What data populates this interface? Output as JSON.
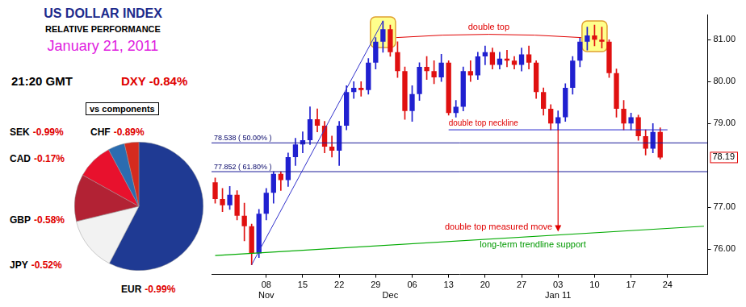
{
  "header": {
    "title": "US DOLLAR INDEX",
    "subtitle": "RELATIVE PERFORMANCE",
    "date": "January 21, 2011",
    "time": "21:20 GMT",
    "index": {
      "name": "DXY",
      "change": {
        "value": -0.84,
        "label": "-0.84%"
      }
    }
  },
  "chart_data": [
    {
      "type": "pie",
      "title": "vs components",
      "categories": [
        "EUR",
        "JPY",
        "GBP",
        "CAD",
        "SEK",
        "CHF"
      ],
      "values": [
        57.6,
        13.6,
        11.9,
        9.1,
        4.2,
        3.6
      ],
      "colors": [
        "#1f3a93",
        "#f2f2f2",
        "#b22234",
        "#e8112d",
        "#2b6cb0",
        "#d52b1e"
      ],
      "changes": [
        {
          "value": -0.99,
          "label": "-0.99%"
        },
        {
          "value": -0.52,
          "label": "-0.52%"
        },
        {
          "value": -0.58,
          "label": "-0.58%"
        },
        {
          "value": -0.17,
          "label": "-0.17%"
        },
        {
          "value": -0.99,
          "label": "-0.99%"
        },
        {
          "value": -0.89,
          "label": "-0.89%"
        }
      ]
    },
    {
      "type": "candlestick",
      "categories": [
        null,
        null,
        null,
        null,
        null,
        null,
        null,
        "08",
        null,
        null,
        null,
        null,
        "15",
        null,
        null,
        null,
        null,
        "22",
        null,
        null,
        null,
        null,
        "29",
        null,
        null,
        null,
        null,
        "06",
        null,
        null,
        null,
        null,
        "13",
        null,
        null,
        null,
        null,
        "20",
        null,
        null,
        null,
        null,
        "27",
        null,
        null,
        null,
        null,
        "03",
        null,
        null,
        null,
        null,
        "10",
        null,
        null,
        null,
        null,
        "17",
        null,
        null,
        null,
        null,
        "24",
        null,
        null,
        null,
        null,
        null
      ],
      "subcategories": [
        null,
        null,
        null,
        null,
        null,
        null,
        null,
        "Nov",
        null,
        null,
        null,
        null,
        null,
        null,
        null,
        null,
        null,
        null,
        null,
        null,
        null,
        null,
        null,
        null,
        "Dec",
        null,
        null,
        null,
        null,
        null,
        null,
        null,
        null,
        null,
        null,
        null,
        null,
        null,
        null,
        null,
        null,
        null,
        null,
        null,
        null,
        null,
        null,
        "Jan 11",
        null,
        null,
        null,
        null,
        null,
        null,
        null,
        null,
        null,
        null,
        null,
        null,
        null,
        null,
        null,
        null,
        null,
        null,
        null,
        null
      ],
      "open": [
        77.6,
        77.2,
        77.05,
        77.3,
        76.8,
        76.55,
        75.9,
        76.85,
        77.35,
        77.8,
        77.65,
        78.2,
        78.5,
        78.6,
        79.1,
        78.95,
        78.45,
        78.35,
        78.95,
        79.75,
        79.85,
        79.8,
        80.45,
        80.95,
        81.25,
        80.7,
        80.25,
        79.3,
        79.7,
        80.35,
        80.25,
        80.1,
        80.45,
        79.25,
        79.4,
        80.25,
        80.15,
        80.6,
        80.7,
        80.4,
        80.55,
        80.5,
        80.4,
        80.65,
        80.45,
        79.75,
        79.35,
        79.0,
        79.15,
        79.85,
        80.5,
        80.95,
        81.1,
        81.0,
        80.95,
        80.2,
        79.35,
        79.0,
        79.15,
        78.7,
        78.4,
        78.8,
        null,
        null,
        null,
        null,
        null,
        null
      ],
      "high": [
        77.7,
        77.45,
        77.5,
        77.4,
        77.1,
        76.6,
        76.95,
        77.45,
        77.85,
        77.85,
        78.3,
        78.65,
        78.8,
        79.4,
        79.35,
        79.05,
        78.7,
        79.05,
        79.9,
        80.0,
        80.0,
        80.55,
        81.05,
        81.445,
        81.35,
        80.95,
        80.35,
        79.9,
        80.45,
        80.6,
        80.5,
        80.65,
        80.5,
        79.55,
        80.35,
        80.5,
        80.7,
        80.85,
        80.8,
        80.7,
        80.75,
        80.6,
        80.8,
        80.85,
        80.5,
        79.85,
        79.45,
        79.3,
        79.95,
        80.6,
        81.05,
        81.3,
        81.35,
        81.3,
        81.0,
        80.3,
        79.55,
        79.25,
        79.2,
        78.85,
        79.0,
        78.9,
        null,
        null,
        null,
        null,
        null,
        null
      ],
      "low": [
        77.1,
        76.9,
        76.95,
        76.7,
        76.2,
        75.631,
        75.8,
        76.7,
        77.1,
        77.4,
        77.5,
        78.0,
        78.3,
        78.5,
        78.8,
        78.3,
        78.2,
        78.0,
        78.85,
        79.6,
        79.65,
        79.7,
        80.3,
        80.7,
        80.6,
        80.1,
        79.1,
        79.05,
        79.55,
        80.05,
        79.95,
        80.0,
        79.2,
        79.15,
        79.3,
        80.0,
        80.05,
        80.4,
        80.3,
        80.3,
        80.35,
        80.3,
        80.25,
        80.3,
        79.6,
        79.2,
        78.85,
        78.85,
        79.05,
        79.7,
        80.35,
        80.75,
        80.85,
        80.8,
        80.1,
        79.15,
        78.85,
        78.85,
        78.6,
        78.25,
        78.3,
        78.15,
        null,
        null,
        null,
        null,
        null,
        null
      ],
      "close": [
        77.2,
        77.05,
        77.3,
        76.8,
        76.55,
        75.9,
        76.85,
        77.35,
        77.8,
        77.65,
        78.2,
        78.5,
        78.6,
        79.1,
        78.95,
        78.45,
        78.35,
        78.95,
        79.75,
        79.85,
        79.8,
        80.45,
        80.95,
        81.25,
        80.7,
        80.25,
        79.3,
        79.7,
        80.35,
        80.25,
        80.1,
        80.45,
        79.25,
        79.4,
        80.25,
        80.15,
        80.6,
        80.7,
        80.4,
        80.55,
        80.5,
        80.4,
        80.65,
        80.45,
        79.75,
        79.35,
        79.0,
        79.15,
        79.85,
        80.5,
        80.95,
        81.1,
        81.0,
        80.95,
        80.2,
        79.35,
        79.0,
        79.15,
        78.7,
        78.4,
        78.8,
        78.19,
        null,
        null,
        null,
        null,
        null,
        null
      ],
      "colors": [
        "#e01010",
        "#e01010",
        "#2020d0",
        "#e01010",
        "#e01010",
        "#e01010",
        "#2020d0",
        "#2020d0",
        "#2020d0",
        "#e01010",
        "#2020d0",
        "#2020d0",
        "#2020d0",
        "#2020d0",
        "#e01010",
        "#e01010",
        "#e01010",
        "#2020d0",
        "#2020d0",
        "#2020d0",
        "#e01010",
        "#2020d0",
        "#2020d0",
        "#2020d0",
        "#e01010",
        "#e01010",
        "#e01010",
        "#2020d0",
        "#2020d0",
        "#e01010",
        "#e01010",
        "#2020d0",
        "#e01010",
        "#2020d0",
        "#2020d0",
        "#e01010",
        "#2020d0",
        "#2020d0",
        "#e01010",
        "#2020d0",
        "#e01010",
        "#e01010",
        "#2020d0",
        "#e01010",
        "#e01010",
        "#e01010",
        "#e01010",
        "#2020d0",
        "#2020d0",
        "#2020d0",
        "#2020d0",
        "#2020d0",
        "#e01010",
        "#e01010",
        "#e01010",
        "#e01010",
        "#e01010",
        "#2020d0",
        "#e01010",
        "#e01010",
        "#2020d0",
        "#e01010",
        null,
        null,
        null,
        null,
        null,
        null
      ],
      "ylim": [
        75.4,
        81.6
      ],
      "yticks": [
        {
          "value": 76,
          "label": "76.00"
        },
        {
          "value": 77,
          "label": "77.00"
        },
        {
          "value": 79,
          "label": "79.00"
        },
        {
          "value": 80,
          "label": "80.00"
        },
        {
          "value": 81,
          "label": "81.00"
        }
      ],
      "grid": false,
      "last_price": {
        "value": 78.19,
        "label": "78.19"
      },
      "fib_levels": [
        {
          "value": 78.538,
          "label": "78.538 ( 50.00% )"
        },
        {
          "value": 77.852,
          "label": "77.852 ( 61.80% )"
        }
      ],
      "fib_swing": {
        "from": [
          5,
          75.631
        ],
        "to": [
          23,
          81.445
        ]
      },
      "highlights": [
        {
          "from": 22,
          "to": 24
        },
        {
          "from": 51,
          "to": 53
        }
      ],
      "double_top": {
        "text": "double top",
        "from": 24,
        "to": 51,
        "value": 81.05
      },
      "neckline": {
        "text": "double top neckline",
        "from": 32,
        "to": 62,
        "value": 78.85
      },
      "measured_move": {
        "text": "double top measured move",
        "at": 47,
        "from": 78.85,
        "to": 76.42
      },
      "trendline": {
        "text": "long-term trendline support",
        "from": [
          0,
          75.85
        ],
        "to": [
          67,
          76.55
        ]
      }
    }
  ]
}
